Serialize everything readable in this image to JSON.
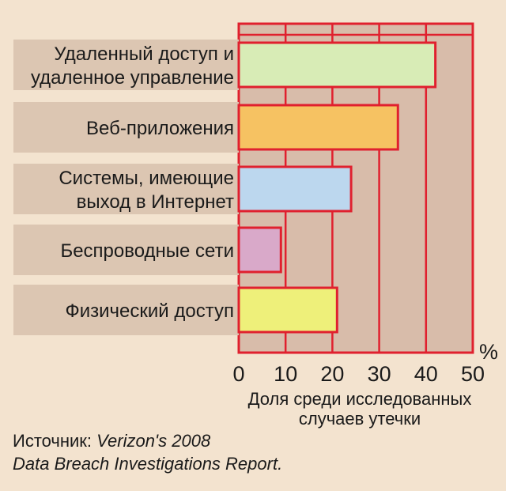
{
  "chart_data": {
    "type": "bar",
    "orientation": "horizontal",
    "categories": [
      [
        "Удаленный доступ и",
        "удаленное управление"
      ],
      [
        "Веб-приложения"
      ],
      [
        "Системы, имеющие",
        "выход в Интернет"
      ],
      [
        "Беспроводные сети"
      ],
      [
        "Физический доступ"
      ]
    ],
    "values": [
      42,
      34,
      24,
      9,
      21
    ],
    "bar_colors": [
      "#d8ecb6",
      "#f6c262",
      "#bcd7ee",
      "#d9a9c9",
      "#eef07a"
    ],
    "xlim": [
      0,
      50
    ],
    "xticks": [
      0,
      10,
      20,
      30,
      40,
      50
    ],
    "unit": "%",
    "xlabel": [
      "Доля среди исследованных",
      "случаев утечки"
    ],
    "grid": true
  },
  "source": {
    "prefix": "Источник: ",
    "title_line1": "Verizon's 2008",
    "title_line2": "Data Breach Investigations Report."
  },
  "colors": {
    "background": "#f3e3cf",
    "plot_area": "#d8bcaa",
    "frame": "#e0202e",
    "label_band": "#dcc6b2"
  }
}
